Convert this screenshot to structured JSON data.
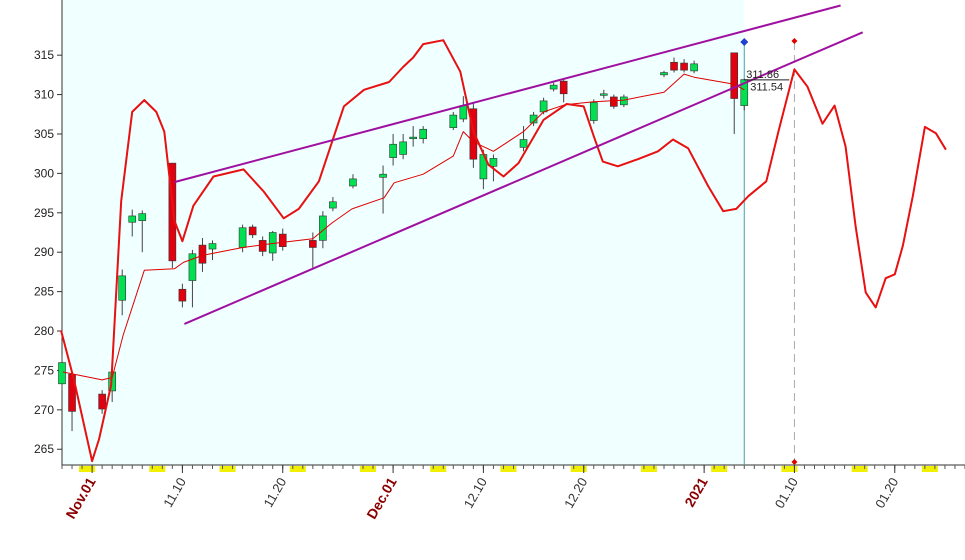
{
  "chart_data": {
    "type": "candlestick",
    "up_color": "#00e050",
    "down_color": "#e00010",
    "background": "#f0ffff",
    "xlim": [
      -3,
      87
    ],
    "ylim": [
      263,
      322
    ],
    "yticks": [
      265,
      270,
      275,
      280,
      285,
      290,
      295,
      300,
      305,
      310,
      315
    ],
    "xticks": [
      {
        "value": 0,
        "label": "Nov.01"
      },
      {
        "value": 9,
        "label": "11.10"
      },
      {
        "value": 19,
        "label": "11.20"
      },
      {
        "value": 30,
        "label": "Dec.01"
      },
      {
        "value": 39,
        "label": "12.10"
      },
      {
        "value": 49,
        "label": "12.20"
      },
      {
        "value": 61,
        "label": "2021"
      },
      {
        "value": 70,
        "label": "01.10"
      },
      {
        "value": 80,
        "label": "01.20"
      }
    ],
    "x": [
      -3,
      -2,
      1,
      2,
      3,
      4,
      5,
      8,
      9,
      10,
      11,
      12,
      15,
      16,
      17,
      18,
      19,
      22,
      23,
      24,
      26,
      29,
      30,
      31,
      32,
      33,
      36,
      37,
      38,
      39,
      40,
      43,
      44,
      45,
      46,
      47,
      50,
      51,
      52,
      53,
      57,
      58,
      59,
      60,
      64,
      65
    ],
    "open": [
      273.3,
      274.5,
      272.0,
      272.4,
      283.9,
      293.8,
      294.0,
      301.3,
      285.3,
      286.4,
      290.9,
      290.4,
      290.6,
      293.2,
      291.5,
      289.9,
      292.3,
      291.5,
      291.5,
      295.6,
      298.4,
      299.5,
      302.0,
      302.4,
      304.4,
      304.4,
      305.8,
      306.9,
      308.2,
      299.3,
      300.9,
      303.3,
      306.4,
      307.8,
      310.7,
      311.7,
      306.7,
      309.9,
      309.7,
      308.7,
      312.5,
      314.1,
      314.0,
      313.0,
      315.3,
      308.6
    ],
    "high": [
      277.0,
      275.0,
      272.5,
      275.5,
      287.8,
      295.4,
      295.3,
      301.3,
      286.0,
      290.3,
      291.8,
      291.5,
      293.5,
      293.5,
      292.0,
      292.7,
      293.0,
      292.5,
      295.2,
      297.0,
      299.9,
      301.0,
      305.0,
      305.0,
      306.0,
      306.0,
      307.8,
      309.8,
      309.0,
      303.0,
      302.4,
      306.0,
      307.8,
      309.6,
      311.5,
      312.0,
      309.4,
      310.6,
      310.0,
      310.0,
      313.0,
      314.7,
      314.5,
      314.3,
      315.3,
      312.0
    ],
    "low": [
      272.5,
      267.3,
      269.5,
      271.0,
      282.0,
      292.0,
      290.0,
      288.0,
      283.0,
      283.0,
      287.5,
      289.0,
      290.0,
      291.8,
      289.5,
      288.9,
      290.2,
      288.0,
      290.5,
      295.2,
      298.1,
      294.9,
      301.0,
      301.8,
      303.4,
      303.8,
      305.5,
      306.5,
      300.7,
      298.0,
      299.0,
      302.8,
      306.0,
      307.5,
      310.4,
      309.0,
      306.3,
      309.5,
      308.2,
      308.4,
      312.2,
      312.8,
      312.8,
      312.7,
      305.0,
      308.0
    ],
    "close": [
      276.0,
      269.8,
      270.1,
      274.8,
      287.0,
      294.6,
      294.9,
      288.9,
      283.8,
      289.8,
      288.6,
      291.1,
      293.1,
      292.2,
      290.1,
      292.5,
      290.7,
      290.6,
      294.6,
      296.4,
      299.3,
      299.9,
      303.7,
      304.0,
      304.6,
      305.6,
      307.4,
      308.6,
      301.8,
      302.4,
      301.9,
      304.3,
      307.4,
      309.2,
      311.2,
      310.1,
      309.0,
      310.1,
      308.5,
      309.7,
      312.8,
      313.1,
      313.1,
      313.9,
      309.5,
      311.9
    ],
    "series": [
      {
        "color": "#e00000",
        "width": 1,
        "x": [
          -2.9,
          1.0,
          2.0,
          3.1,
          5.2,
          8.2,
          9.1,
          11.0,
          15.0,
          18.0,
          22.0,
          23.9,
          25.9,
          29.1,
          30.1,
          33.0,
          36.0,
          37.0,
          38.0,
          40.0,
          43.0,
          45.0,
          47.1,
          50.0,
          53.0,
          57.0,
          59.0,
          60.0,
          64.0,
          65.0
        ],
        "values": [
          274.8,
          273.8,
          274.1,
          279.5,
          287.7,
          287.9,
          288.7,
          289.6,
          290.6,
          291.1,
          291.7,
          293.7,
          295.5,
          296.9,
          298.8,
          299.9,
          302.2,
          305.3,
          304.0,
          302.8,
          305.3,
          307.8,
          308.7,
          309.1,
          309.3,
          310.3,
          312.6,
          312.2,
          311.3,
          310.6
        ]
      },
      {
        "color": "#e81010",
        "width": 2,
        "x": [
          -3.1,
          -1.8,
          0,
          0.7,
          1.9,
          2.9,
          4.0,
          5.2,
          6.4,
          7.2,
          8.2,
          9.0,
          10.1,
          12.1,
          15.1,
          17.1,
          19.1,
          20.6,
          22.6,
          25.1,
          27.1,
          29.6,
          31.0,
          32.0,
          33.0,
          35.0,
          36.7,
          38.0,
          39.5,
          41.0,
          42.5,
          45.0,
          47.3,
          49.0,
          50.0,
          50.9,
          52.4,
          54.4,
          56.4,
          57.9,
          59.4,
          61.4,
          62.9,
          64.2,
          65.4,
          67.2,
          68.4,
          70.0,
          71.3,
          72.8,
          74.0,
          75.1,
          76.1,
          77.1,
          78.1,
          79.1,
          80.0,
          80.8,
          81.8,
          83.0,
          84.1,
          85.1
        ],
        "values": [
          280.1,
          273.8,
          263.5,
          266.3,
          273.2,
          296.5,
          307.8,
          309.3,
          307.8,
          305.3,
          294.0,
          291.4,
          295.9,
          299.6,
          300.5,
          297.7,
          294.3,
          295.5,
          299.0,
          308.5,
          310.6,
          311.6,
          313.5,
          314.7,
          316.4,
          316.9,
          312.9,
          305.3,
          301.1,
          299.6,
          301.3,
          306.8,
          308.8,
          308.5,
          304.7,
          301.5,
          300.9,
          301.8,
          302.8,
          304.3,
          303.2,
          298.4,
          295.2,
          295.5,
          297.1,
          299.0,
          305.3,
          313.2,
          311.0,
          306.3,
          308.6,
          303.4,
          293.3,
          284.9,
          283.0,
          286.7,
          287.2,
          290.8,
          297.1,
          305.9,
          305.1,
          303.0
        ]
      },
      {
        "color": "#a010a0",
        "width": 2,
        "x": [
          8.2,
          74.6
        ],
        "values": [
          298.9,
          321.3
        ]
      },
      {
        "color": "#a010a0",
        "width": 2,
        "x": [
          9.2,
          76.8
        ],
        "values": [
          280.9,
          317.9
        ]
      }
    ],
    "annotations": [
      {
        "text": "311.86",
        "value": 311.86
      },
      {
        "text": "311.54",
        "value": 311.54
      }
    ]
  }
}
